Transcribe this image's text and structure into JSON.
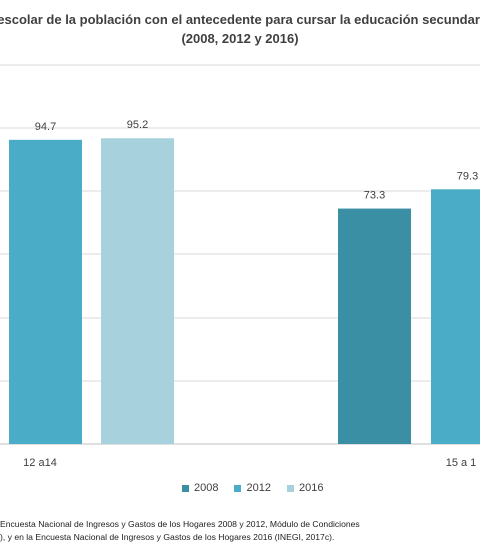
{
  "chart_data": {
    "type": "bar",
    "title_line1": "escolar de la población con  el antecedente para cursar  la educación secundaria",
    "title_line2": "(2008, 2012 y 2016)",
    "categories": [
      "12 a14",
      "15 a 1"
    ],
    "series": [
      {
        "name": "2008",
        "color": "#3b8fa5",
        "values": [
          null,
          73.3
        ]
      },
      {
        "name": "2012",
        "color": "#4aacc6",
        "values": [
          94.7,
          79.3
        ]
      },
      {
        "name": "2016",
        "color": "#a8d1de",
        "values": [
          95.2,
          null
        ]
      }
    ],
    "ylim": [
      0,
      118
    ],
    "grid": true,
    "legend_position": "bottom"
  },
  "source": {
    "line1": "Encuesta Nacional de Ingresos y Gastos de los Hogares 2008 y 2012, Módulo de Condiciones",
    "line2": "), y en la Encuesta Nacional de Ingresos y Gastos de los Hogares 2016 (INEGI, 2017c)."
  }
}
